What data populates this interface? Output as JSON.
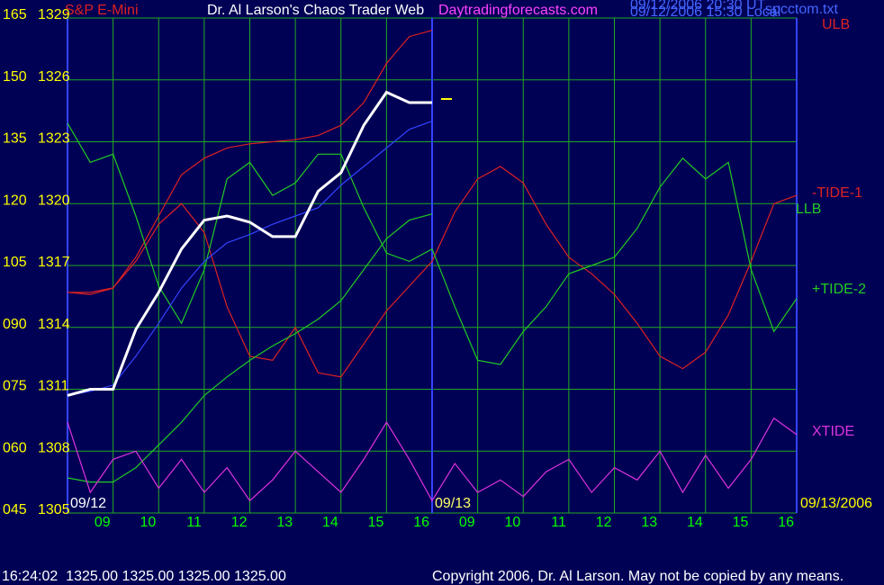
{
  "chart_data": {
    "type": "line",
    "instrument": "S&P E-Mini",
    "title": "Dr. Al Larson's Chaos Trader Web",
    "website": "Daytradingforecasts.com",
    "timestamps": [
      "09/12/2006 20:30 UT",
      "09/12/2006 15:30 Local"
    ],
    "file": "spcctom.txt",
    "date_labels": [
      "09/12",
      "09/13",
      "09/13/2006"
    ],
    "status": "16:24:02  1325.00 1325.00 1325.00 1325.00",
    "copyright": "Copyright 2006, Dr. Al Larson. May not be copied by any means.",
    "grid": true,
    "xlim": [
      0,
      16
    ],
    "xticks": [
      {
        "value": 1,
        "label": "09"
      },
      {
        "value": 2,
        "label": "10"
      },
      {
        "value": 3,
        "label": "11"
      },
      {
        "value": 4,
        "label": "12"
      },
      {
        "value": 5,
        "label": "13"
      },
      {
        "value": 6,
        "label": "14"
      },
      {
        "value": 7,
        "label": "15"
      },
      {
        "value": 8,
        "label": "16"
      },
      {
        "value": 9,
        "label": "09"
      },
      {
        "value": 10,
        "label": "10"
      },
      {
        "value": 11,
        "label": "11"
      },
      {
        "value": 12,
        "label": "12"
      },
      {
        "value": 13,
        "label": "13"
      },
      {
        "value": 14,
        "label": "14"
      },
      {
        "value": 15,
        "label": "15"
      },
      {
        "value": 16,
        "label": "16"
      }
    ],
    "ylim": [
      1305,
      1329
    ],
    "yticks": [
      1305,
      1308,
      1311,
      1314,
      1317,
      1320,
      1323,
      1326,
      1329
    ],
    "y2lim": [
      45,
      165
    ],
    "y2ticks": [
      {
        "value": 45,
        "label": "045"
      },
      {
        "value": 60,
        "label": "060"
      },
      {
        "value": 75,
        "label": "075"
      },
      {
        "value": 90,
        "label": "090"
      },
      105,
      120,
      135,
      150,
      165
    ],
    "series": [
      {
        "name": "ULB",
        "color": "#dd2222",
        "x": [
          0,
          0.5,
          1,
          1.5,
          2,
          2.5,
          3,
          3.5,
          4,
          4.5,
          5,
          5.5,
          6,
          6.5,
          7,
          7.5,
          8
        ],
        "values": [
          1315.7,
          1315.6,
          1315.9,
          1317.4,
          1319.4,
          1321.4,
          1322.2,
          1322.7,
          1322.9,
          1323.0,
          1323.1,
          1323.3,
          1323.8,
          1324.9,
          1326.8,
          1328.1,
          1328.4
        ]
      },
      {
        "name": "-TIDE-1",
        "color": "#dd2222",
        "axis": "y2",
        "x": [
          0,
          0.5,
          1,
          1.5,
          2,
          2.5,
          3,
          3.5,
          4,
          4.5,
          5,
          5.5,
          6,
          6.5,
          7,
          7.5,
          8,
          8.5,
          9,
          9.5,
          10,
          10.5,
          11,
          11.5,
          12,
          12.5,
          13,
          13.5,
          14,
          14.5,
          15,
          15.5,
          16
        ],
        "values": [
          98.5,
          98.5,
          99.6,
          106,
          115,
          120,
          113,
          95,
          83,
          82,
          90,
          79,
          78,
          86,
          94,
          100,
          106,
          118,
          126,
          129,
          125,
          115,
          107,
          103,
          98,
          91,
          83,
          80,
          84,
          93,
          106,
          120,
          122
        ]
      },
      {
        "name": "LLB",
        "color": "#22cc22",
        "x": [
          0,
          0.5,
          1,
          1.5,
          2,
          2.5,
          3,
          3.5,
          4,
          4.5,
          5,
          5.5,
          6,
          6.5,
          7,
          7.5,
          8
        ],
        "values": [
          1306.7,
          1306.5,
          1306.5,
          1307.2,
          1308.3,
          1309.4,
          1310.7,
          1311.6,
          1312.4,
          1313.1,
          1313.7,
          1314.4,
          1315.3,
          1316.8,
          1318.3,
          1319.2,
          1319.5
        ]
      },
      {
        "name": "+TIDE-2",
        "color": "#22cc22",
        "axis": "y2",
        "x": [
          0,
          0.5,
          1,
          1.5,
          2,
          2.5,
          3,
          3.5,
          4,
          4.5,
          5,
          5.5,
          6,
          6.5,
          7,
          7.5,
          8,
          8.5,
          9,
          9.5,
          10,
          10.5,
          11,
          11.5,
          12,
          12.5,
          13,
          13.5,
          14,
          14.5,
          15,
          15.5,
          16
        ],
        "values": [
          139.5,
          130,
          132,
          117,
          100,
          91,
          104,
          126,
          130,
          122,
          125,
          132,
          132,
          119,
          108,
          106,
          109,
          95,
          82,
          81,
          89,
          95,
          103,
          105,
          107,
          114,
          124,
          131,
          126,
          130,
          104,
          89,
          97
        ]
      },
      {
        "name": "XTIDE",
        "color": "#dd33dd",
        "axis": "y2",
        "x": [
          0,
          0.5,
          1,
          1.5,
          2,
          2.5,
          3,
          3.5,
          4,
          4.5,
          5,
          5.5,
          6,
          6.5,
          7,
          7.5,
          8,
          8.5,
          9,
          9.5,
          10,
          10.5,
          11,
          11.5,
          12,
          12.5,
          13,
          13.5,
          14,
          14.5,
          15,
          15.5,
          16
        ],
        "values": [
          67,
          50,
          58,
          60,
          51,
          58,
          50,
          56,
          48,
          53,
          60,
          55,
          50,
          58,
          67,
          58,
          48,
          57,
          50,
          53,
          49,
          55,
          58,
          50,
          56,
          53,
          60,
          50,
          59,
          51,
          58,
          68,
          64
        ]
      },
      {
        "color": "#3344ff",
        "x": [
          0,
          0.5,
          1,
          1.5,
          2,
          2.5,
          3,
          3.5,
          4,
          4.5,
          5,
          5.5,
          6,
          6.5,
          7,
          7.5,
          8
        ],
        "values": [
          1310.7,
          1310.9,
          1311.2,
          1312.6,
          1314.2,
          1315.9,
          1317.2,
          1318.1,
          1318.5,
          1319.0,
          1319.4,
          1319.8,
          1320.9,
          1321.8,
          1322.7,
          1323.6,
          1324.0
        ]
      },
      {
        "color": "#ffffff",
        "x": [
          0,
          0.5,
          1,
          1.5,
          2,
          2.5,
          3,
          3.5,
          4,
          4.5,
          5,
          5.5,
          6,
          6.5,
          7,
          7.5,
          8
        ],
        "values": [
          1310.7,
          1311.0,
          1311.0,
          1313.9,
          1315.7,
          1317.8,
          1319.2,
          1319.4,
          1319.1,
          1318.4,
          1318.4,
          1320.6,
          1321.5,
          1323.8,
          1325.4,
          1324.9,
          1324.9
        ]
      }
    ]
  }
}
